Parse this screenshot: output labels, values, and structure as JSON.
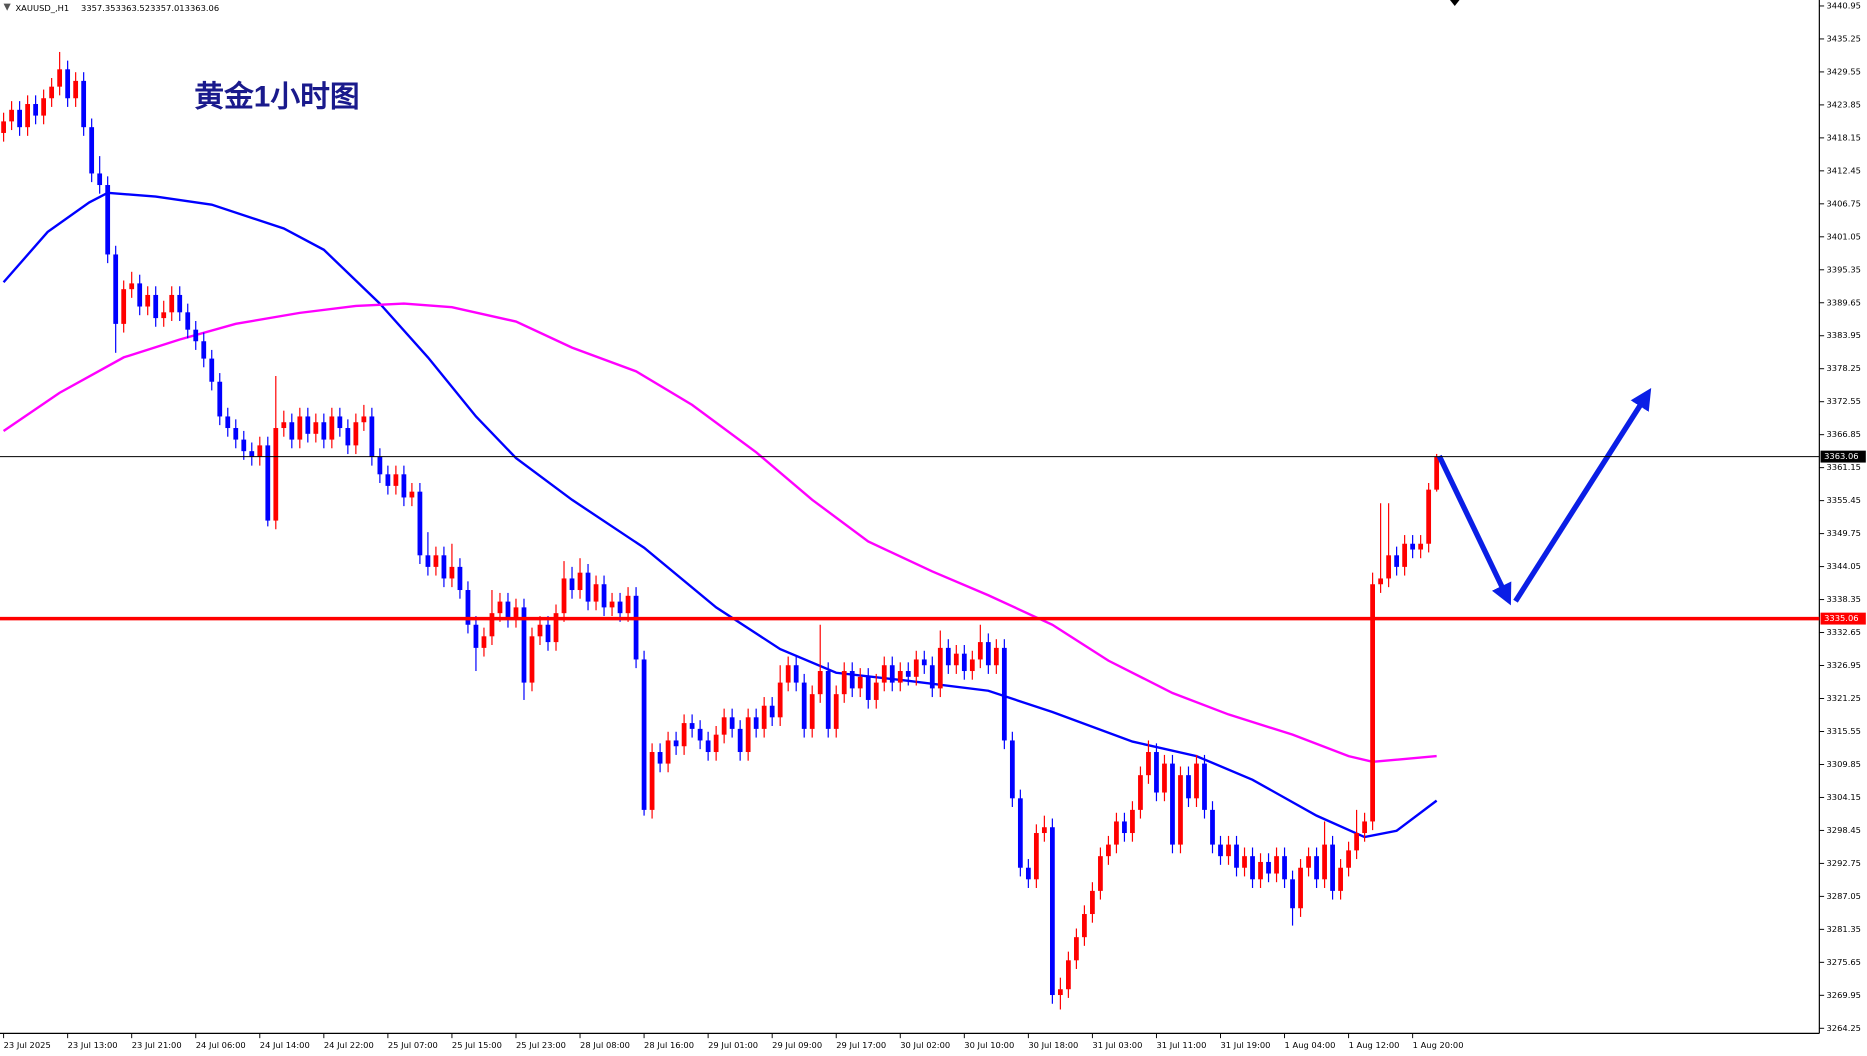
{
  "chart_data": {
    "type": "candlestick",
    "title": "黄金1小时图",
    "symbol": "XAUUSD_,H1",
    "up_color": "#ff0000",
    "down_color": "#0000ff",
    "open": [
      3419,
      3421,
      3423,
      3420,
      3424,
      3422,
      3425,
      3427,
      3430,
      3425,
      3428,
      3420,
      3412,
      3410,
      3398,
      3386,
      3392,
      3393,
      3389,
      3391,
      3387,
      3388,
      3391,
      3388,
      3385,
      3383,
      3380,
      3376,
      3370,
      3368,
      3366,
      3364,
      3363,
      3365,
      3352,
      3368,
      3369,
      3366,
      3370,
      3367,
      3369,
      3366,
      3370,
      3368,
      3365,
      3369,
      3370,
      3363,
      3360,
      3358,
      3360,
      3356,
      3357,
      3346,
      3344,
      3346,
      3342,
      3344,
      3340,
      3334,
      3330,
      3332,
      3336,
      3338,
      3335,
      3337,
      3324,
      3332,
      3334,
      3331,
      3336,
      3342,
      3340,
      3343,
      3338,
      3341,
      3337,
      3338,
      3336,
      3339,
      3328,
      3302,
      3312,
      3310,
      3314,
      3313,
      3317,
      3316,
      3314,
      3312,
      3315,
      3318,
      3316,
      3312,
      3318,
      3316,
      3320,
      3318,
      3324,
      3327,
      3324,
      3316,
      3322,
      3326,
      3316,
      3322,
      3326,
      3323,
      3325,
      3321,
      3324,
      3327,
      3324,
      3326,
      3325,
      3328,
      3327,
      3323,
      3330,
      3327,
      3329,
      3326,
      3328,
      3331,
      3327,
      3330,
      3314,
      3304,
      3292,
      3290,
      3298,
      3299,
      3270,
      3271,
      3276,
      3280,
      3284,
      3288,
      3294,
      3296,
      3300,
      3298,
      3302,
      3308,
      3312,
      3305,
      3310,
      3296,
      3308,
      3304,
      3310,
      3302,
      3296,
      3294,
      3296,
      3292,
      3294,
      3290,
      3293,
      3291,
      3294,
      3290,
      3285,
      3292,
      3294,
      3290,
      3296,
      3288,
      3292,
      3295,
      3298,
      3300,
      3341,
      3342,
      3346,
      3344,
      3348,
      3347,
      3348,
      3357.35
    ],
    "high": [
      3422.5,
      3424.5,
      3424.5,
      3425.5,
      3425.5,
      3426.5,
      3428.5,
      3433,
      3431.5,
      3429.5,
      3429.5,
      3421.5,
      3415,
      3411.5,
      3399.5,
      3393.5,
      3395,
      3394.5,
      3392.5,
      3392.5,
      3390,
      3392.5,
      3392.5,
      3389.5,
      3386.5,
      3384.5,
      3381.5,
      3377.5,
      3371.5,
      3369.5,
      3367.5,
      3365.5,
      3366.5,
      3366.5,
      3377,
      3371,
      3370.5,
      3371.5,
      3371.5,
      3370.5,
      3370.5,
      3371.5,
      3371.5,
      3369.5,
      3370.5,
      3372,
      3371.5,
      3364.5,
      3361.5,
      3361.5,
      3361.5,
      3358.5,
      3358.5,
      3350,
      3347.5,
      3347.5,
      3348,
      3345.5,
      3341.5,
      3335.5,
      3333.5,
      3340,
      3339.5,
      3339.5,
      3338.5,
      3338.5,
      3333.5,
      3335.5,
      3335.5,
      3337.5,
      3345,
      3344,
      3345.5,
      3344.5,
      3342.5,
      3342.5,
      3339.5,
      3339.5,
      3340.5,
      3340.5,
      3329.5,
      3313.5,
      3313.5,
      3315.5,
      3315.5,
      3318.5,
      3318.5,
      3317.5,
      3315.5,
      3316.5,
      3319.5,
      3319.5,
      3317.5,
      3319.5,
      3319.5,
      3321.5,
      3321.5,
      3327,
      3328.5,
      3328.5,
      3325.5,
      3323.5,
      3334,
      3327.5,
      3323.5,
      3327.5,
      3327.5,
      3326.5,
      3326.5,
      3325.5,
      3328.5,
      3328.5,
      3327.5,
      3327.5,
      3329.5,
      3329.5,
      3328.5,
      3333,
      3331.5,
      3330.5,
      3330.5,
      3329.5,
      3334,
      3332.5,
      3331.5,
      3331.5,
      3315.5,
      3305.5,
      3293.5,
      3299.5,
      3301,
      3300.5,
      3273,
      3277.5,
      3281.5,
      3285.5,
      3289.5,
      3295.5,
      3297.5,
      3301.5,
      3301.5,
      3303.5,
      3309.5,
      3314,
      3313.5,
      3311.5,
      3311.5,
      3309.5,
      3309.5,
      3311.5,
      3311.5,
      3303.5,
      3297.5,
      3297.5,
      3297.5,
      3295.5,
      3295.5,
      3294.5,
      3294.5,
      3295.5,
      3295.5,
      3291.5,
      3293.5,
      3295.5,
      3295.5,
      3300,
      3297.5,
      3293.5,
      3296.5,
      3302,
      3301.5,
      3343,
      3355,
      3355,
      3347.5,
      3349.5,
      3349.5,
      3349.5,
      3358.5,
      3363.52
    ],
    "low": [
      3417.5,
      3419.5,
      3418.5,
      3418.5,
      3420.5,
      3420.5,
      3423.5,
      3425.5,
      3423.5,
      3423.5,
      3418.5,
      3410.5,
      3408.5,
      3396.5,
      3381,
      3384.5,
      3390.5,
      3387.5,
      3387.5,
      3385.5,
      3385.5,
      3386.5,
      3386.5,
      3383.5,
      3381.5,
      3378.5,
      3374.5,
      3368.5,
      3366.5,
      3364.5,
      3362.5,
      3361.5,
      3361.5,
      3351,
      3350.5,
      3366.5,
      3364.5,
      3364.5,
      3365.5,
      3365.5,
      3364.5,
      3364.5,
      3366.5,
      3363.5,
      3363.5,
      3367.5,
      3361.5,
      3358.5,
      3356.5,
      3356.5,
      3354.5,
      3354.5,
      3344.5,
      3342.5,
      3342.5,
      3340.5,
      3340.5,
      3338.5,
      3332.5,
      3326,
      3328.5,
      3330.5,
      3334.5,
      3333.5,
      3333.5,
      3321,
      3322.5,
      3330.5,
      3329.5,
      3329.5,
      3334.5,
      3338.5,
      3338.5,
      3336.5,
      3336.5,
      3335.5,
      3335.5,
      3334.5,
      3334.5,
      3326.5,
      3301,
      3300.5,
      3308.5,
      3308.5,
      3311.5,
      3311.5,
      3314.5,
      3312.5,
      3310.5,
      3310.5,
      3313.5,
      3314.5,
      3310.5,
      3310.5,
      3314.5,
      3314.5,
      3316.5,
      3316.5,
      3322.5,
      3322.5,
      3314.5,
      3314.5,
      3320.5,
      3314.5,
      3314.5,
      3320.5,
      3321.5,
      3321.5,
      3319.5,
      3319.5,
      3322.5,
      3322.5,
      3322.5,
      3323.5,
      3323.5,
      3325.5,
      3321.5,
      3321.5,
      3325.5,
      3325.5,
      3324.5,
      3324.5,
      3326.5,
      3325.5,
      3325.5,
      3312.5,
      3302.5,
      3290.5,
      3288.5,
      3288.5,
      3296.5,
      3268.5,
      3267.5,
      3269.5,
      3274.5,
      3278.5,
      3282.5,
      3286.5,
      3292.5,
      3294.5,
      3296.5,
      3296.5,
      3300.5,
      3306.5,
      3303.5,
      3303.5,
      3294.5,
      3294.5,
      3302.5,
      3302.5,
      3300.5,
      3294.5,
      3292.5,
      3292.5,
      3290.5,
      3290.5,
      3288.5,
      3288.5,
      3289.5,
      3289.5,
      3288.5,
      3282,
      3283.5,
      3290.5,
      3288.5,
      3288.5,
      3286.5,
      3286.5,
      3290.5,
      3293.5,
      3296.5,
      3298.5,
      3339.5,
      3340.5,
      3342.5,
      3342.5,
      3345.5,
      3345.5,
      3346.5,
      3357.01
    ],
    "close": [
      3421,
      3423,
      3420,
      3424,
      3422,
      3425,
      3427,
      3430,
      3425,
      3428,
      3420,
      3412,
      3410,
      3398,
      3386,
      3392,
      3393,
      3389,
      3391,
      3387,
      3388,
      3391,
      3388,
      3385,
      3383,
      3380,
      3376,
      3370,
      3368,
      3366,
      3364,
      3363,
      3365,
      3352,
      3368,
      3369,
      3366,
      3370,
      3367,
      3369,
      3366,
      3370,
      3368,
      3365,
      3369,
      3370,
      3363,
      3360,
      3358,
      3360,
      3356,
      3357,
      3346,
      3344,
      3346,
      3342,
      3344,
      3340,
      3334,
      3330,
      3332,
      3336,
      3338,
      3335,
      3337,
      3324,
      3332,
      3334,
      3331,
      3336,
      3342,
      3340,
      3343,
      3338,
      3341,
      3337,
      3338,
      3336,
      3339,
      3328,
      3302,
      3312,
      3310,
      3314,
      3313,
      3317,
      3316,
      3314,
      3312,
      3315,
      3318,
      3316,
      3312,
      3318,
      3316,
      3320,
      3318,
      3324,
      3327,
      3324,
      3316,
      3322,
      3326,
      3316,
      3322,
      3326,
      3323,
      3325,
      3321,
      3324,
      3327,
      3324,
      3326,
      3325,
      3328,
      3327,
      3323,
      3330,
      3327,
      3329,
      3326,
      3328,
      3331,
      3327,
      3330,
      3314,
      3304,
      3292,
      3290,
      3298,
      3299,
      3270,
      3271,
      3276,
      3280,
      3284,
      3288,
      3294,
      3296,
      3300,
      3298,
      3302,
      3308,
      3312,
      3305,
      3310,
      3296,
      3308,
      3304,
      3310,
      3302,
      3296,
      3294,
      3296,
      3292,
      3294,
      3290,
      3293,
      3291,
      3294,
      3290,
      3285,
      3292,
      3294,
      3290,
      3296,
      3288,
      3292,
      3295,
      3298,
      3300,
      3341,
      3342,
      3346,
      3344,
      3348,
      3347,
      3348,
      3357.35,
      3363.06
    ],
    "series": [
      {
        "color": "#0000ff",
        "x": [
          0,
          5.5,
          10.7,
          13,
          19,
          26,
          35,
          40,
          47,
          53,
          59,
          64,
          71,
          80,
          89,
          97,
          104,
          113,
          123,
          131,
          141,
          149,
          156,
          164,
          170,
          174,
          179
        ],
        "values": [
          3393.2,
          3401.9,
          3407.0,
          3408.65,
          3408.0,
          3406.6,
          3402.5,
          3398.8,
          3389.5,
          3380.2,
          3370.0,
          3362.8,
          3355.6,
          3347.3,
          3337.0,
          3329.8,
          3325.7,
          3324.3,
          3322.6,
          3318.9,
          3313.8,
          3311.3,
          3307.2,
          3301.0,
          3297.3,
          3298.4,
          3303.6
        ]
      },
      {
        "color": "#ff00ff",
        "x": [
          0,
          7,
          15,
          22,
          29,
          37,
          44,
          50,
          56,
          64,
          71,
          79,
          86,
          94,
          101,
          108,
          116,
          123,
          131,
          138,
          146,
          153,
          161,
          168,
          171,
          179
        ],
        "values": [
          3367.5,
          3374.1,
          3380.2,
          3383.3,
          3386.0,
          3387.9,
          3389.1,
          3389.5,
          3388.9,
          3386.4,
          3381.9,
          3377.8,
          3372.0,
          3363.8,
          3355.6,
          3348.4,
          3343.2,
          3339.1,
          3334.0,
          3327.8,
          3322.2,
          3318.5,
          3315.0,
          3311.3,
          3310.3,
          3311.3
        ]
      }
    ],
    "price_lines": [
      {
        "value": 3363.06,
        "color": "#000000"
      },
      {
        "value": 3335.06,
        "color": "#ff0000"
      }
    ],
    "xlim": [
      -0.45,
      226.8
    ],
    "ylim": [
      3263.37,
      3441.98
    ],
    "yticks": [
      3440.95,
      3435.25,
      3429.55,
      3423.85,
      3418.15,
      3412.45,
      3406.75,
      3401.05,
      3395.35,
      3389.65,
      3383.95,
      3378.25,
      3372.55,
      3366.85,
      3361.15,
      3355.45,
      3349.75,
      3344.05,
      3338.35,
      3332.65,
      3326.95,
      3321.25,
      3315.55,
      3309.85,
      3304.15,
      3298.45,
      3292.75,
      3287.05,
      3281.35,
      3275.65,
      3269.95,
      3264.25
    ],
    "xticks": [
      {
        "value": 0,
        "label": "23 Jul 2025"
      },
      {
        "value": 8,
        "label": "23 Jul 13:00"
      },
      {
        "value": 16,
        "label": "23 Jul 21:00"
      },
      {
        "value": 24,
        "label": "24 Jul 06:00"
      },
      {
        "value": 32,
        "label": "24 Jul 14:00"
      },
      {
        "value": 40,
        "label": "24 Jul 22:00"
      },
      {
        "value": 48,
        "label": "25 Jul 07:00"
      },
      {
        "value": 56,
        "label": "25 Jul 15:00"
      },
      {
        "value": 64,
        "label": "25 Jul 23:00"
      },
      {
        "value": 72,
        "label": "28 Jul 08:00"
      },
      {
        "value": 80,
        "label": "28 Jul 16:00"
      },
      {
        "value": 88,
        "label": "29 Jul 01:00"
      },
      {
        "value": 96,
        "label": "29 Jul 09:00"
      },
      {
        "value": 104,
        "label": "29 Jul 17:00"
      },
      {
        "value": 112,
        "label": "30 Jul 02:00"
      },
      {
        "value": 120,
        "label": "30 Jul 10:00"
      },
      {
        "value": 128,
        "label": "30 Jul 18:00"
      },
      {
        "value": 136,
        "label": "31 Jul 03:00"
      },
      {
        "value": 144,
        "label": "31 Jul 11:00"
      },
      {
        "value": 152,
        "label": "31 Jul 19:00"
      },
      {
        "value": 160,
        "label": "1 Aug 04:00"
      },
      {
        "value": 168,
        "label": "1 Aug 12:00"
      },
      {
        "value": 176,
        "label": "1 Aug 20:00"
      }
    ]
  }
}
